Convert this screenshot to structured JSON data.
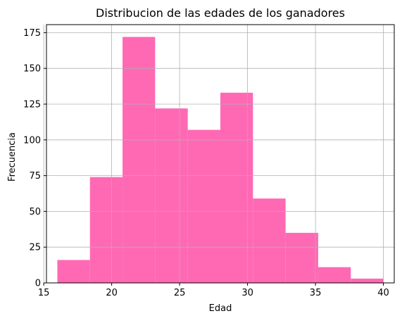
{
  "chart_data": {
    "type": "bar",
    "title": "Distribucion de las edades de los ganadores",
    "xlabel": "Edad",
    "ylabel": "Frecuencia",
    "bins": [
      {
        "start": 16.0,
        "end": 18.4,
        "count": 16
      },
      {
        "start": 18.4,
        "end": 20.8,
        "count": 74
      },
      {
        "start": 20.8,
        "end": 23.2,
        "count": 172
      },
      {
        "start": 23.2,
        "end": 25.6,
        "count": 122
      },
      {
        "start": 25.6,
        "end": 28.0,
        "count": 107
      },
      {
        "start": 28.0,
        "end": 30.4,
        "count": 133
      },
      {
        "start": 30.4,
        "end": 32.8,
        "count": 59
      },
      {
        "start": 32.8,
        "end": 35.2,
        "count": 35
      },
      {
        "start": 35.2,
        "end": 37.6,
        "count": 11
      },
      {
        "start": 37.6,
        "end": 40.0,
        "count": 3
      }
    ],
    "xlim": [
      15.2,
      40.8
    ],
    "ylim": [
      0,
      180.6
    ],
    "xticks": [
      15,
      20,
      25,
      30,
      35,
      40
    ],
    "yticks": [
      0,
      25,
      50,
      75,
      100,
      125,
      150,
      175
    ],
    "grid": true,
    "bar_color": "#ff69b4",
    "grid_color": "#b0b0b0"
  }
}
